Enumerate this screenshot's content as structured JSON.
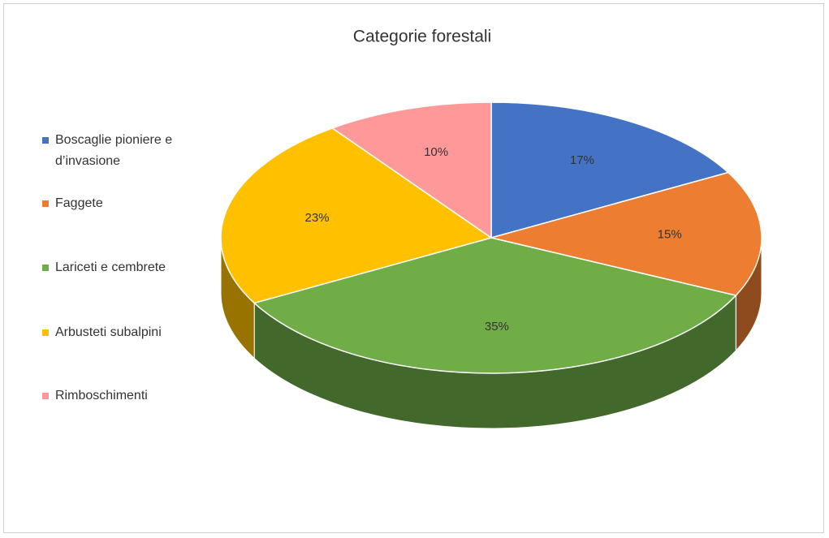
{
  "chart_data": {
    "type": "pie",
    "title": "Categorie forestali",
    "categories": [
      "Boscaglie pioniere e d’invasione",
      "Faggete",
      "Lariceti e cembrete",
      "Arbusteti subalpini",
      "Rimboschimenti"
    ],
    "values": [
      17,
      15,
      35,
      23,
      10
    ],
    "value_labels": [
      "17%",
      "15%",
      "35%",
      "23%",
      "10%"
    ],
    "colors": [
      "#4472c4",
      "#ed7d31",
      "#70ad47",
      "#ffc000",
      "#ff9999"
    ],
    "legend": "left"
  }
}
